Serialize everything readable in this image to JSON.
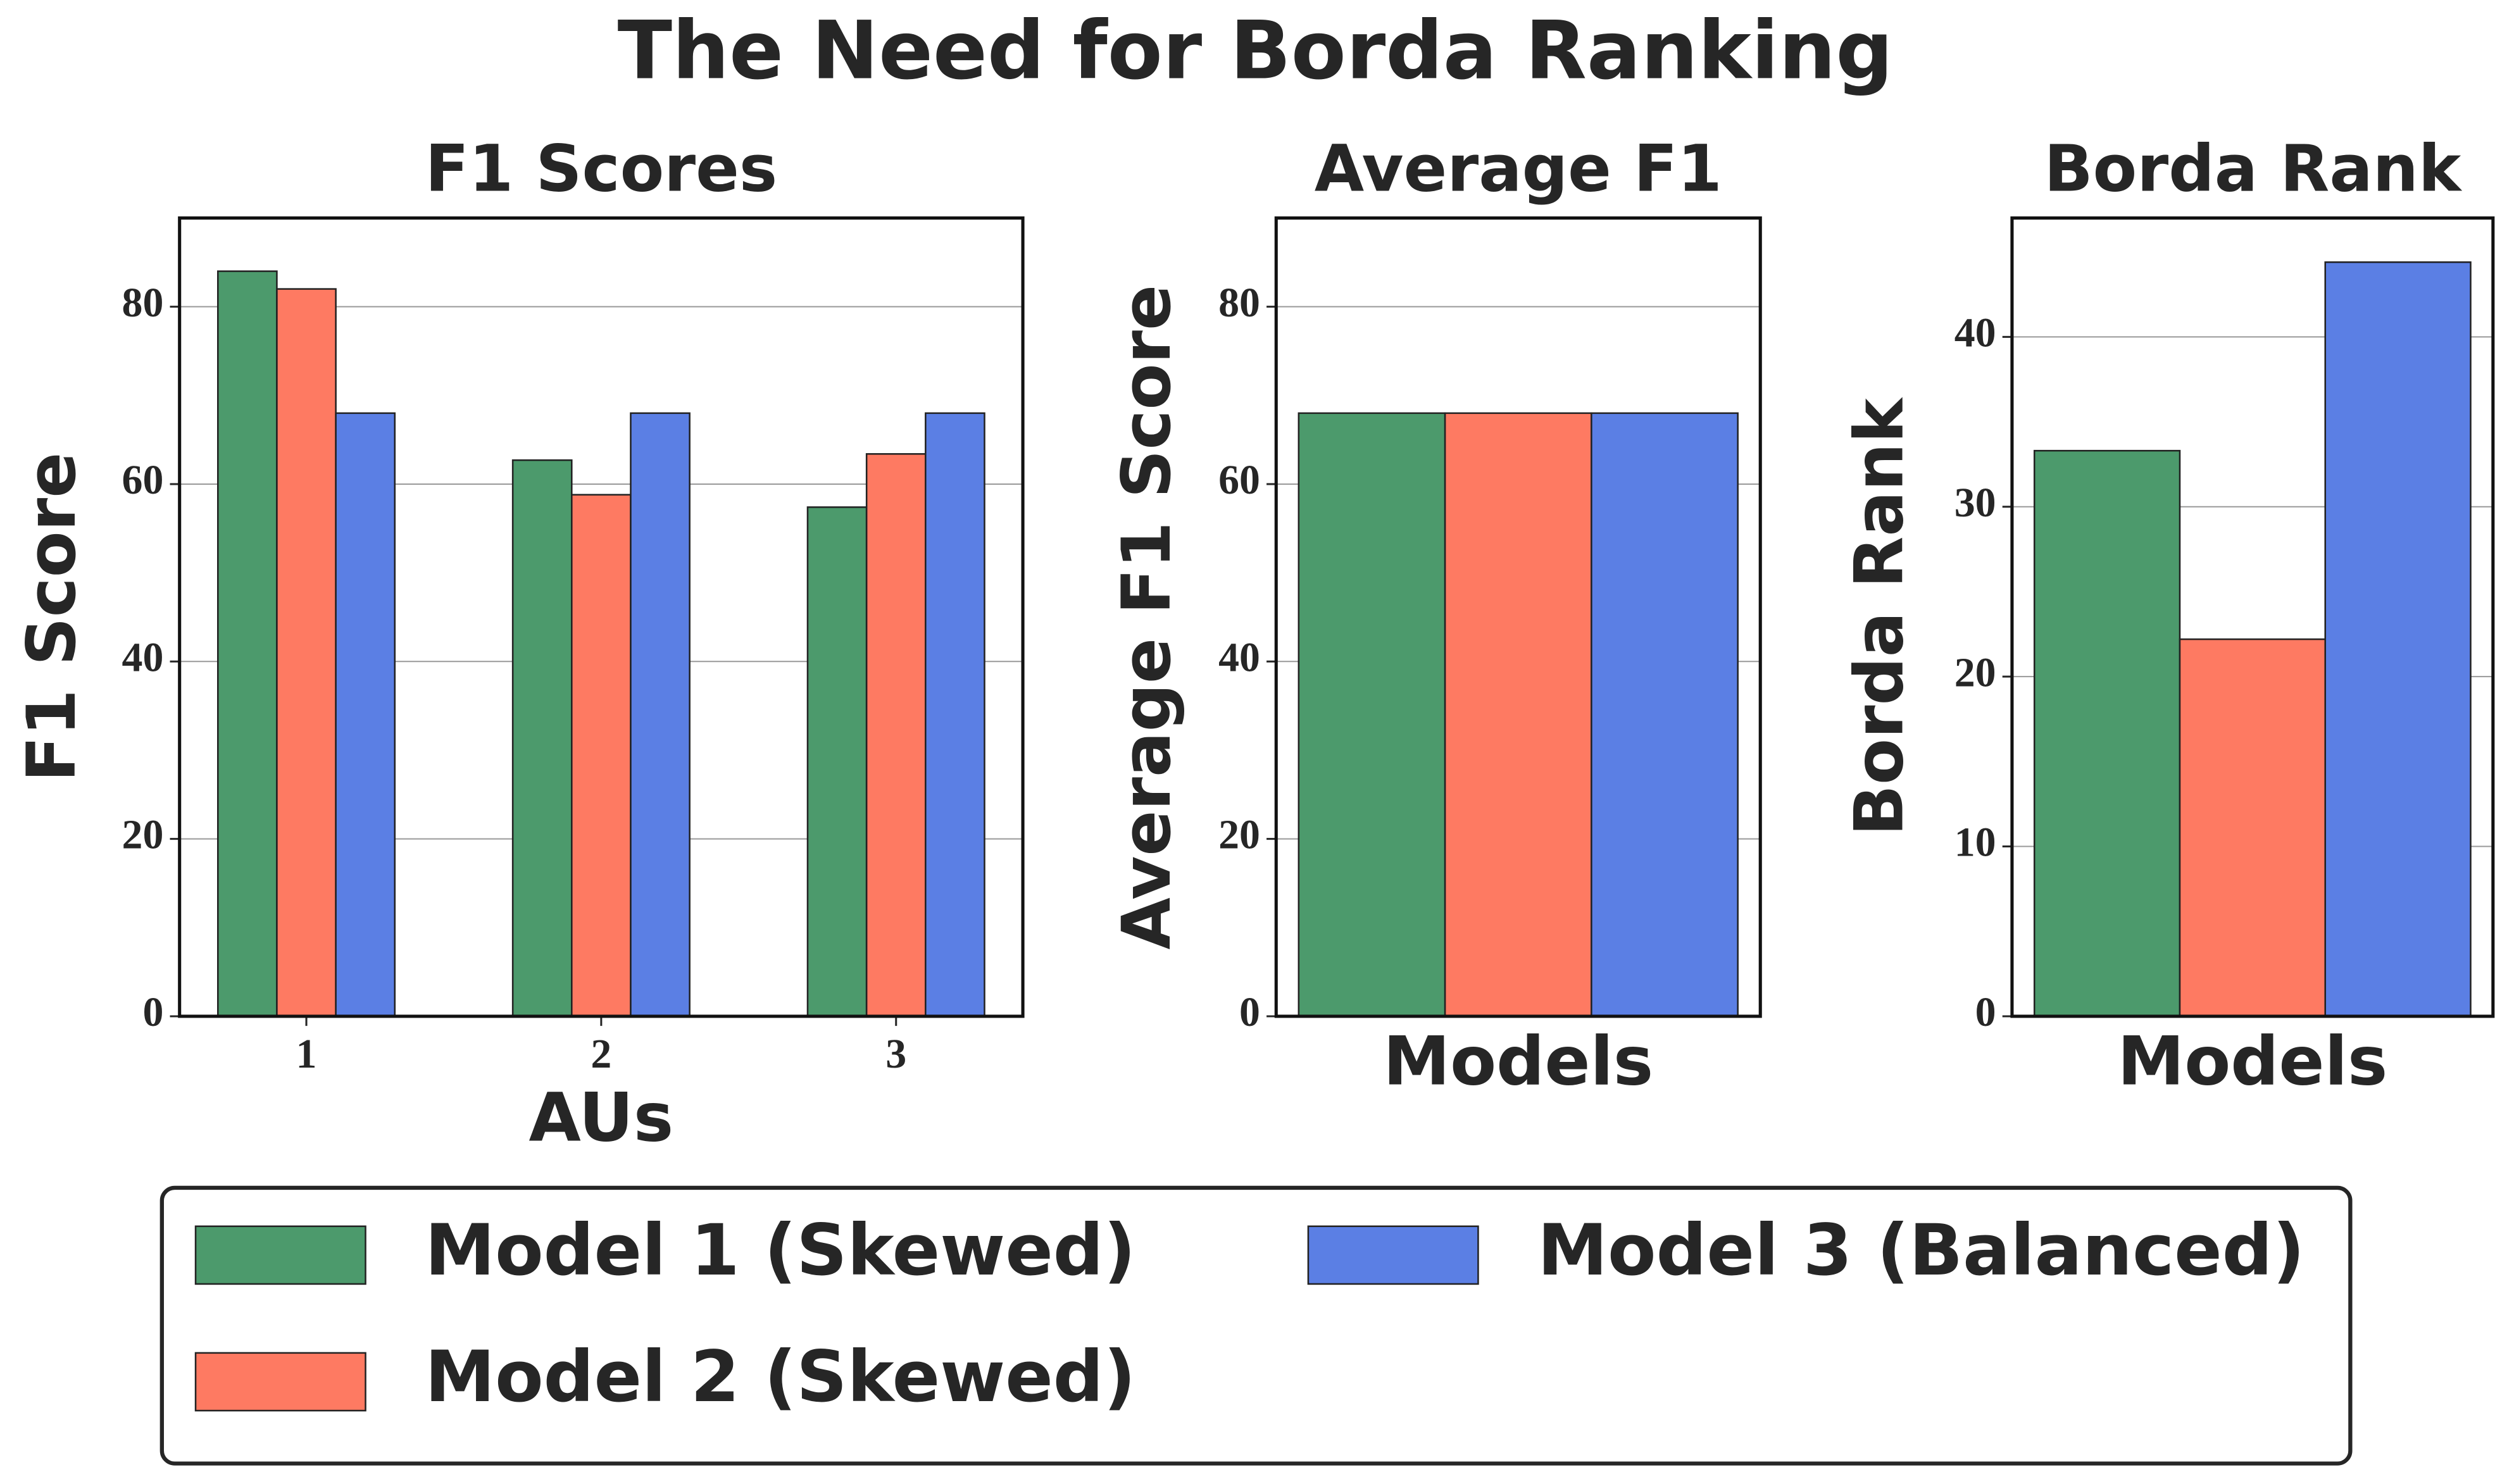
{
  "title": "The Need for Borda Ranking",
  "chart_data": [
    {
      "type": "bar",
      "title": "F1 Scores",
      "xlabel": "AUs",
      "ylabel": "F1 Score",
      "categories": [
        "1",
        "2",
        "3"
      ],
      "series": [
        {
          "name": "Model 1 (Skewed)",
          "color": "#4c9a6c",
          "values": [
            84,
            62.7,
            57.4
          ]
        },
        {
          "name": "Model 2 (Skewed)",
          "color": "#fe7a62",
          "values": [
            82,
            58.8,
            63.4
          ]
        },
        {
          "name": "Model 3 (Balanced)",
          "color": "#5b7fe4",
          "values": [
            68,
            68,
            68
          ]
        }
      ],
      "ylim": [
        0,
        90
      ],
      "yticks": [
        0,
        20,
        40,
        60,
        80
      ],
      "grid": true
    },
    {
      "type": "bar",
      "title": "Average F1",
      "xlabel": "Models",
      "ylabel": "Average F1 Score",
      "categories": [
        null
      ],
      "series": [
        {
          "name": "Model 1 (Skewed)",
          "color": "#4c9a6c",
          "values": [
            68
          ]
        },
        {
          "name": "Model 2 (Skewed)",
          "color": "#fe7a62",
          "values": [
            68
          ]
        },
        {
          "name": "Model 3 (Balanced)",
          "color": "#5b7fe4",
          "values": [
            68
          ]
        }
      ],
      "ylim": [
        0,
        90
      ],
      "yticks": [
        0,
        20,
        40,
        60,
        80
      ],
      "grid": true
    },
    {
      "type": "bar",
      "title": "Borda Rank",
      "xlabel": "Models",
      "ylabel": "Borda Rank",
      "categories": [
        null
      ],
      "series": [
        {
          "name": "Model 1 (Skewed)",
          "color": "#4c9a6c",
          "values": [
            33.3
          ]
        },
        {
          "name": "Model 2 (Skewed)",
          "color": "#fe7a62",
          "values": [
            22.2
          ]
        },
        {
          "name": "Model 3 (Balanced)",
          "color": "#5b7fe4",
          "values": [
            44.4
          ]
        }
      ],
      "ylim": [
        0,
        47
      ],
      "yticks": [
        0,
        10,
        20,
        30,
        40
      ],
      "grid": true
    }
  ],
  "legend": {
    "position": "bottom"
  }
}
